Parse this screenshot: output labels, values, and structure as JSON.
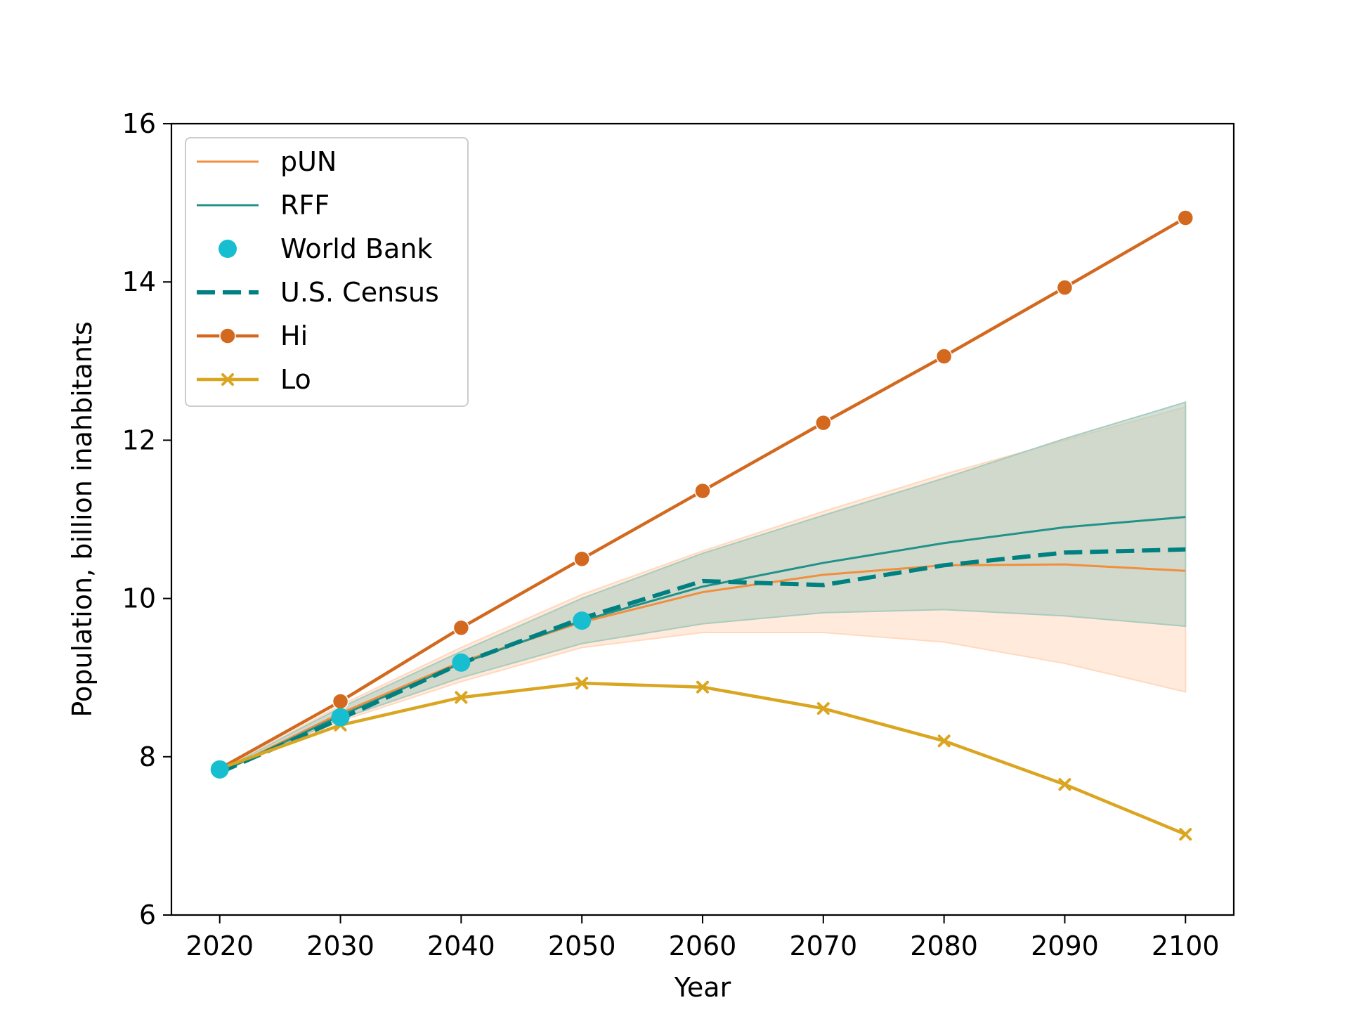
{
  "chart_data": {
    "type": "line",
    "xlabel": "Year",
    "ylabel": "Population, billion inahbitants",
    "xlim": [
      2016,
      2104
    ],
    "ylim": [
      6,
      16
    ],
    "xticks": [
      2020,
      2030,
      2040,
      2050,
      2060,
      2070,
      2080,
      2090,
      2100
    ],
    "yticks": [
      6,
      8,
      10,
      12,
      14,
      16
    ],
    "grid": false,
    "legend_position": "top-left",
    "x": [
      2020,
      2030,
      2040,
      2050,
      2060,
      2070,
      2080,
      2090,
      2100
    ],
    "series": [
      {
        "name": "pUN",
        "style": "line",
        "color": "#f28e3c",
        "values": [
          7.8,
          8.55,
          9.2,
          9.7,
          10.08,
          10.3,
          10.42,
          10.43,
          10.35
        ],
        "band_lower": [
          7.8,
          8.45,
          8.95,
          9.38,
          9.57,
          9.57,
          9.45,
          9.18,
          8.82
        ],
        "band_upper": [
          7.82,
          8.65,
          9.38,
          10.05,
          10.6,
          11.1,
          11.57,
          12.0,
          12.42
        ],
        "band_color": "#ffd9bf"
      },
      {
        "name": "RFF",
        "style": "line",
        "color": "#22918a",
        "values": [
          7.8,
          8.52,
          9.18,
          9.72,
          10.15,
          10.45,
          10.7,
          10.9,
          11.03
        ],
        "band_lower": [
          7.8,
          8.48,
          9.0,
          9.43,
          9.68,
          9.82,
          9.86,
          9.78,
          9.65
        ],
        "band_upper": [
          7.82,
          8.62,
          9.33,
          10.0,
          10.57,
          11.05,
          11.52,
          12.02,
          12.48
        ],
        "band_color": "#a9cbbd"
      },
      {
        "name": "World Bank",
        "style": "scatter",
        "color": "#17becf",
        "points": [
          [
            2020,
            7.84
          ],
          [
            2030,
            8.5
          ],
          [
            2040,
            9.19
          ],
          [
            2050,
            9.72
          ]
        ]
      },
      {
        "name": "U.S. Census",
        "style": "dashed",
        "color": "#008080",
        "values": [
          7.8,
          8.48,
          9.18,
          9.75,
          10.22,
          10.17,
          10.42,
          10.58,
          10.62
        ]
      },
      {
        "name": "Hi",
        "style": "line-circle",
        "color": "#d2691e",
        "values": [
          7.85,
          8.7,
          9.63,
          10.5,
          11.36,
          12.22,
          13.06,
          13.93,
          14.81
        ]
      },
      {
        "name": "Lo",
        "style": "line-x",
        "color": "#daa520",
        "values": [
          7.85,
          8.4,
          8.75,
          8.93,
          8.88,
          8.61,
          8.2,
          7.65,
          7.02
        ]
      }
    ]
  }
}
